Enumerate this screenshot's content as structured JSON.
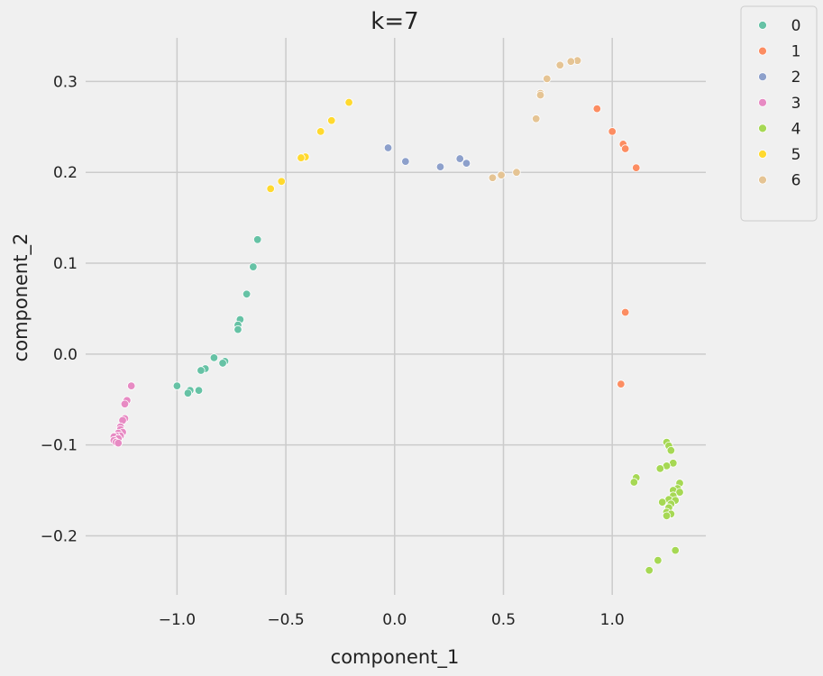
{
  "chart_data": {
    "type": "scatter",
    "title": "k=7",
    "xlabel": "component_1",
    "ylabel": "component_2",
    "xlim": [
      -1.42,
      1.43
    ],
    "ylim": [
      -0.265,
      0.348
    ],
    "x_ticks": [
      -1.0,
      -0.5,
      0.0,
      0.5,
      1.0
    ],
    "x_tick_labels": [
      "−1.0",
      "−0.5",
      "0.0",
      "0.5",
      "1.0"
    ],
    "y_ticks": [
      -0.2,
      -0.1,
      0.0,
      0.1,
      0.2,
      0.3
    ],
    "y_tick_labels": [
      "−0.2",
      "−0.1",
      "0.0",
      "0.1",
      "0.2",
      "0.3"
    ],
    "grid": true,
    "legend_position": "outside-top-right",
    "series": [
      {
        "name": "0",
        "color": "#66c2a5",
        "points": [
          [
            -0.63,
            0.126
          ],
          [
            -0.65,
            0.096
          ],
          [
            -0.68,
            0.066
          ],
          [
            -0.71,
            0.038
          ],
          [
            -0.72,
            0.032
          ],
          [
            -0.72,
            0.027
          ],
          [
            -0.78,
            -0.008
          ],
          [
            -0.79,
            -0.01
          ],
          [
            -0.83,
            -0.004
          ],
          [
            -0.87,
            -0.016
          ],
          [
            -0.89,
            -0.018
          ],
          [
            -0.9,
            -0.04
          ],
          [
            -0.94,
            -0.04
          ],
          [
            -0.95,
            -0.043
          ],
          [
            -1.0,
            -0.035
          ]
        ]
      },
      {
        "name": "1",
        "color": "#fc8d62",
        "points": [
          [
            0.93,
            0.27
          ],
          [
            1.0,
            0.245
          ],
          [
            1.05,
            0.231
          ],
          [
            1.06,
            0.226
          ],
          [
            1.11,
            0.205
          ],
          [
            1.06,
            0.046
          ],
          [
            1.04,
            -0.033
          ]
        ]
      },
      {
        "name": "2",
        "color": "#8da0cb",
        "points": [
          [
            -0.03,
            0.227
          ],
          [
            0.05,
            0.212
          ],
          [
            0.21,
            0.206
          ],
          [
            0.3,
            0.215
          ],
          [
            0.33,
            0.21
          ]
        ]
      },
      {
        "name": "3",
        "color": "#e78ac3",
        "points": [
          [
            -1.21,
            -0.035
          ],
          [
            -1.23,
            -0.051
          ],
          [
            -1.24,
            -0.055
          ],
          [
            -1.24,
            -0.071
          ],
          [
            -1.25,
            -0.073
          ],
          [
            -1.26,
            -0.08
          ],
          [
            -1.26,
            -0.083
          ],
          [
            -1.25,
            -0.086
          ],
          [
            -1.27,
            -0.087
          ],
          [
            -1.26,
            -0.09
          ],
          [
            -1.28,
            -0.09
          ],
          [
            -1.29,
            -0.091
          ],
          [
            -1.27,
            -0.093
          ],
          [
            -1.29,
            -0.095
          ],
          [
            -1.28,
            -0.097
          ],
          [
            -1.27,
            -0.098
          ]
        ]
      },
      {
        "name": "4",
        "color": "#a6d854",
        "points": [
          [
            1.25,
            -0.097
          ],
          [
            1.26,
            -0.101
          ],
          [
            1.27,
            -0.106
          ],
          [
            1.28,
            -0.12
          ],
          [
            1.25,
            -0.123
          ],
          [
            1.22,
            -0.126
          ],
          [
            1.11,
            -0.136
          ],
          [
            1.1,
            -0.141
          ],
          [
            1.31,
            -0.142
          ],
          [
            1.3,
            -0.148
          ],
          [
            1.28,
            -0.15
          ],
          [
            1.31,
            -0.152
          ],
          [
            1.28,
            -0.156
          ],
          [
            1.26,
            -0.16
          ],
          [
            1.29,
            -0.161
          ],
          [
            1.23,
            -0.163
          ],
          [
            1.27,
            -0.165
          ],
          [
            1.26,
            -0.169
          ],
          [
            1.25,
            -0.174
          ],
          [
            1.27,
            -0.176
          ],
          [
            1.25,
            -0.178
          ],
          [
            1.29,
            -0.216
          ],
          [
            1.21,
            -0.227
          ],
          [
            1.17,
            -0.238
          ]
        ]
      },
      {
        "name": "5",
        "color": "#ffd92f",
        "points": [
          [
            -0.21,
            0.277
          ],
          [
            -0.29,
            0.257
          ],
          [
            -0.34,
            0.245
          ],
          [
            -0.41,
            0.217
          ],
          [
            -0.43,
            0.216
          ],
          [
            -0.52,
            0.19
          ],
          [
            -0.57,
            0.182
          ]
        ]
      },
      {
        "name": "6",
        "color": "#e5c494",
        "points": [
          [
            0.84,
            0.323
          ],
          [
            0.81,
            0.322
          ],
          [
            0.76,
            0.318
          ],
          [
            0.7,
            0.303
          ],
          [
            0.67,
            0.287
          ],
          [
            0.67,
            0.285
          ],
          [
            0.65,
            0.259
          ],
          [
            0.56,
            0.2
          ],
          [
            0.49,
            0.197
          ],
          [
            0.45,
            0.194
          ]
        ]
      }
    ]
  }
}
